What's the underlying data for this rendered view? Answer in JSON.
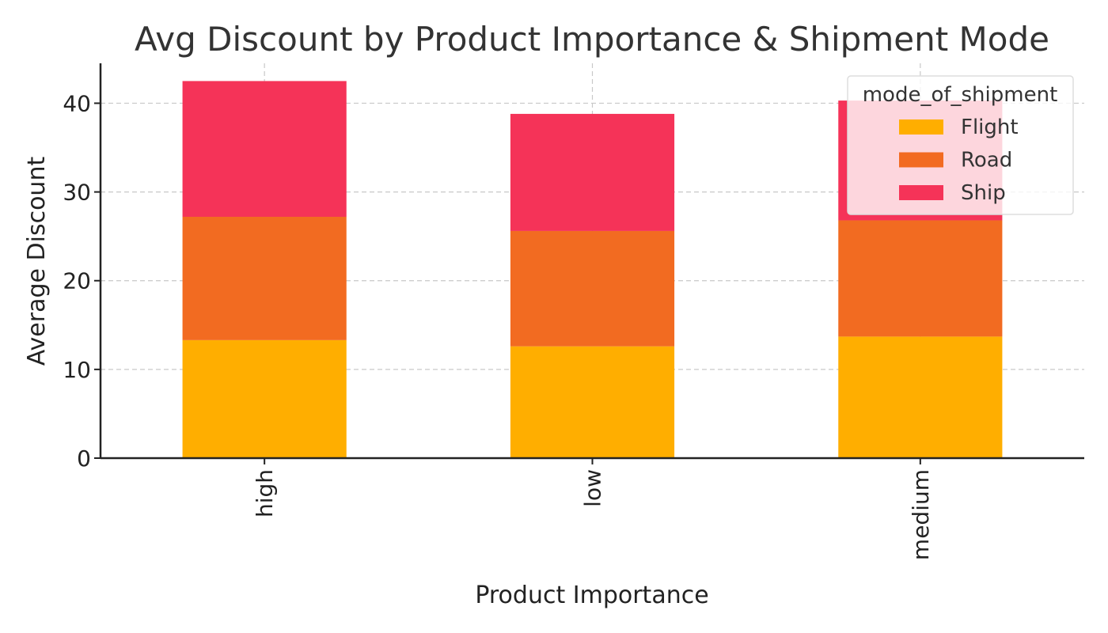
{
  "chart_data": {
    "type": "bar",
    "stacked": true,
    "title": "Avg Discount by Product Importance & Shipment Mode",
    "xlabel": "Product Importance",
    "ylabel": "Average Discount",
    "categories": [
      "high",
      "low",
      "medium"
    ],
    "series": [
      {
        "name": "Flight",
        "color": "#FFAE00",
        "values": [
          13.3,
          12.6,
          13.7
        ]
      },
      {
        "name": "Road",
        "color": "#F26B21",
        "values": [
          13.9,
          13.0,
          13.1
        ]
      },
      {
        "name": "Ship",
        "color": "#F53358",
        "values": [
          15.3,
          13.2,
          13.5
        ]
      }
    ],
    "ylim": [
      0,
      44.5
    ],
    "yticks": [
      0,
      10,
      20,
      30,
      40
    ],
    "grid": true,
    "legend": {
      "title": "mode_of_shipment",
      "placement": "top-right"
    }
  }
}
